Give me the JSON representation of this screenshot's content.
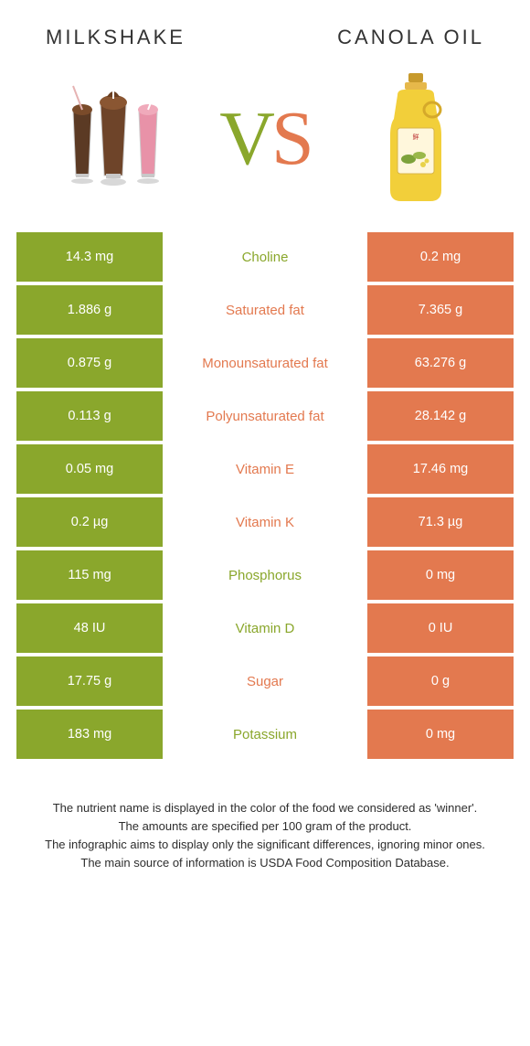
{
  "colors": {
    "left": "#8aa72c",
    "right": "#e3794f",
    "text": "#333333"
  },
  "header": {
    "left_title": "MILKSHAKE",
    "right_title": "CANOLA OIL"
  },
  "vs": {
    "v": "V",
    "s": "S"
  },
  "rows": [
    {
      "left": "14.3 mg",
      "label": "Choline",
      "right": "0.2 mg",
      "winner": "left"
    },
    {
      "left": "1.886 g",
      "label": "Saturated fat",
      "right": "7.365 g",
      "winner": "right"
    },
    {
      "left": "0.875 g",
      "label": "Monounsaturated fat",
      "right": "63.276 g",
      "winner": "right"
    },
    {
      "left": "0.113 g",
      "label": "Polyunsaturated fat",
      "right": "28.142 g",
      "winner": "right"
    },
    {
      "left": "0.05 mg",
      "label": "Vitamin E",
      "right": "17.46 mg",
      "winner": "right"
    },
    {
      "left": "0.2 µg",
      "label": "Vitamin K",
      "right": "71.3 µg",
      "winner": "right"
    },
    {
      "left": "115 mg",
      "label": "Phosphorus",
      "right": "0 mg",
      "winner": "left"
    },
    {
      "left": "48 IU",
      "label": "Vitamin D",
      "right": "0 IU",
      "winner": "left"
    },
    {
      "left": "17.75 g",
      "label": "Sugar",
      "right": "0 g",
      "winner": "right"
    },
    {
      "left": "183 mg",
      "label": "Potassium",
      "right": "0 mg",
      "winner": "left"
    }
  ],
  "footer": {
    "line1": "The nutrient name is displayed in the color of the food we considered as 'winner'.",
    "line2": "The amounts are specified per 100 gram of the product.",
    "line3": "The infographic aims to display only the significant differences, ignoring minor ones.",
    "line4": "The main source of information is USDA Food Composition Database."
  }
}
